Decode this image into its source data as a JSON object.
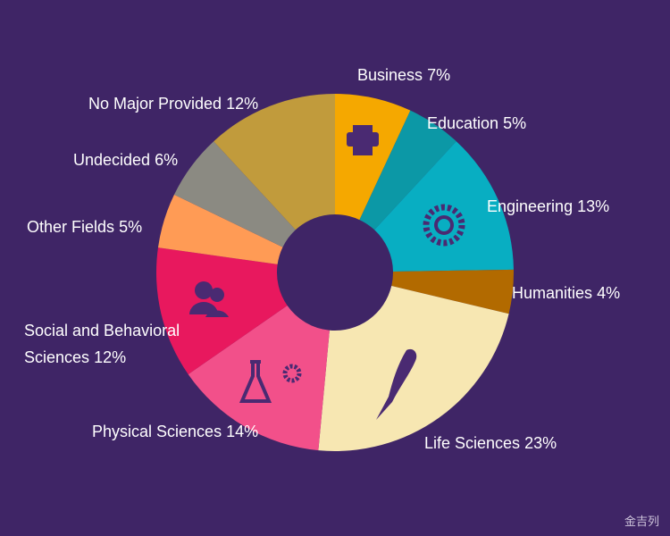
{
  "chart_data": {
    "type": "donut",
    "categories": [
      "Business",
      "Education",
      "Engineering",
      "Humanities",
      "Life Sciences",
      "Physical Sciences",
      "Social and Behavioral Sciences",
      "Other Fields",
      "Undecided",
      "No Major Provided"
    ],
    "values": [
      7,
      5,
      13,
      4,
      23,
      14,
      12,
      5,
      6,
      12
    ],
    "value_labels": [
      "7%",
      "5%",
      "13%",
      "4%",
      "23%",
      "14%",
      "12%",
      "5%",
      "6%",
      "12%"
    ],
    "colors": [
      "#f5a800",
      "#0c98a6",
      "#08aec2",
      "#b26a00",
      "#f7e7b2",
      "#f2508a",
      "#e8185e",
      "#ff9b55",
      "#8b8a82",
      "#c19b3c"
    ]
  },
  "watermark": "金吉列"
}
